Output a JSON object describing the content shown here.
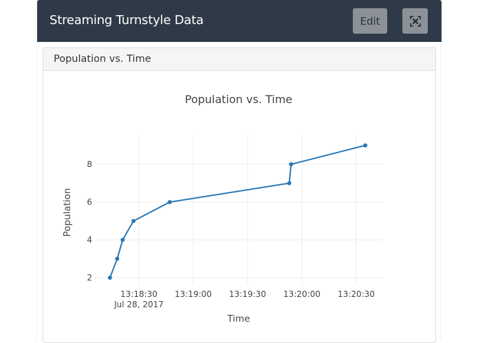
{
  "header": {
    "title": "Streaming Turnstyle Data",
    "edit_label": "Edit",
    "expand_icon": "expand-icon"
  },
  "card": {
    "title": "Population vs. Time"
  },
  "colors": {
    "header_bg": "#2e3a47",
    "button_bg": "#8c9198",
    "line": "#2a78b5",
    "grid": "#eeeeee"
  },
  "chart_data": {
    "type": "line",
    "title": "Population vs. Time",
    "xlabel": "Time",
    "ylabel": "Population",
    "x_tick_labels": [
      "13:18:30",
      "13:19:00",
      "13:19:30",
      "13:20:00",
      "13:20:30"
    ],
    "x_tick_sublabel": "Jul 28, 2017",
    "y_tick_labels": [
      "2",
      "4",
      "6",
      "8"
    ],
    "ylim": [
      1.6,
      9.5
    ],
    "grid": true,
    "legend": "none",
    "x": [
      "13:18:14",
      "13:18:18",
      "13:18:21",
      "13:18:27",
      "13:18:47",
      "13:19:53",
      "13:19:54",
      "13:20:35"
    ],
    "x_seconds_after_131830": [
      -16,
      -12,
      -9,
      -3,
      17,
      83,
      84,
      125
    ],
    "values": [
      2,
      3,
      4,
      5,
      6,
      7,
      8,
      9
    ],
    "series": [
      {
        "name": "Population",
        "values": [
          2,
          3,
          4,
          5,
          6,
          7,
          8,
          9
        ]
      }
    ]
  }
}
